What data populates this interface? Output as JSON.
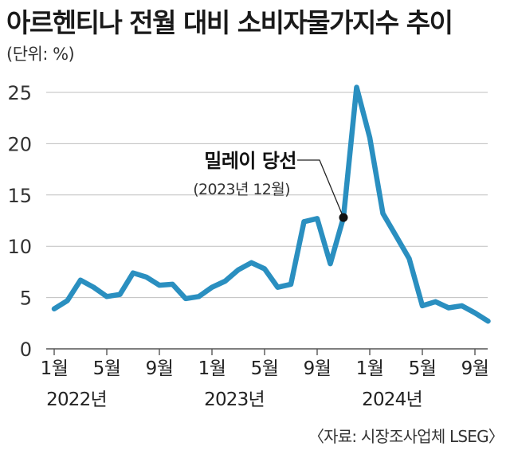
{
  "title": "아르헨티나 전월 대비 소비자물가지수 추이",
  "unit": "(단위: %)",
  "source": "〈자료: 시장조사업체 LSEG〉",
  "colors": {
    "line": "#2a8fc0",
    "grid": "#bfbfbf",
    "marker": "#111111"
  },
  "chart_data": {
    "type": "line",
    "title": "아르헨티나 전월 대비 소비자물가지수 추이",
    "ylabel": "(단위: %)",
    "ylim": [
      0,
      25
    ],
    "yticks": [
      0,
      5,
      10,
      15,
      20,
      25
    ],
    "grid": "horizontal",
    "x": [
      "2022-01",
      "2022-02",
      "2022-03",
      "2022-04",
      "2022-05",
      "2022-06",
      "2022-07",
      "2022-08",
      "2022-09",
      "2022-10",
      "2022-11",
      "2022-12",
      "2023-01",
      "2023-02",
      "2023-03",
      "2023-04",
      "2023-05",
      "2023-06",
      "2023-07",
      "2023-08",
      "2023-09",
      "2023-10",
      "2023-11",
      "2023-12",
      "2024-01",
      "2024-02",
      "2024-03",
      "2024-04",
      "2024-05",
      "2024-06",
      "2024-07",
      "2024-08",
      "2024-09",
      "2024-10"
    ],
    "series": [
      {
        "name": "",
        "values": [
          3.9,
          4.7,
          6.7,
          6.0,
          5.1,
          5.3,
          7.4,
          7.0,
          6.2,
          6.3,
          4.9,
          5.1,
          6.0,
          6.6,
          7.7,
          8.4,
          7.8,
          6.0,
          6.3,
          12.4,
          12.7,
          8.3,
          12.8,
          25.5,
          20.6,
          13.2,
          11.0,
          8.8,
          4.2,
          4.6,
          4.0,
          4.2,
          3.5,
          2.7
        ]
      }
    ],
    "xtick_labels": [
      {
        "month": "2022-01",
        "label": "1월"
      },
      {
        "month": "2022-05",
        "label": "5월"
      },
      {
        "month": "2022-09",
        "label": "9월"
      },
      {
        "month": "2023-01",
        "label": "1월"
      },
      {
        "month": "2023-05",
        "label": "5월"
      },
      {
        "month": "2023-09",
        "label": "9월"
      },
      {
        "month": "2024-01",
        "label": "1월"
      },
      {
        "month": "2024-05",
        "label": "5월"
      },
      {
        "month": "2024-09",
        "label": "9월"
      }
    ],
    "year_labels": [
      {
        "month": "2022-01",
        "label": "2022년"
      },
      {
        "month": "2023-01",
        "label": "2023년"
      },
      {
        "month": "2024-01",
        "label": "2024년"
      }
    ],
    "annotation": {
      "point": {
        "x": "2023-11",
        "y": 12.8
      },
      "title": "밀레이 당선",
      "subtitle": "(2023년 12월)"
    }
  }
}
